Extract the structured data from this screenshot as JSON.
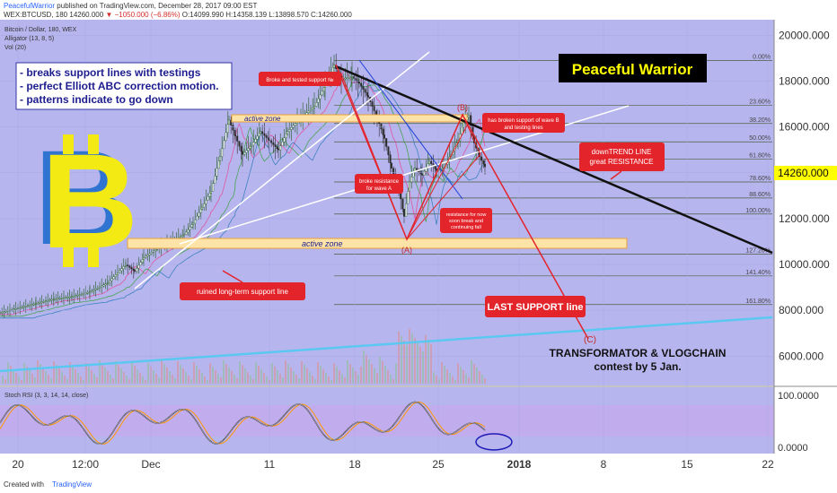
{
  "header": {
    "author": "PeacefulWarrior",
    "published": "published on TradingView.com, December 28, 2017 09:00 EST",
    "symbol": "WEX:BTCUSD, 180",
    "price": "14260.000",
    "change": "▼ −1050.000 (−6.86%)",
    "ohlc": "O:14099.990 H:14358.139 L:13898.570 C:14260.000"
  },
  "legend": {
    "title": "Bitcoin / Dollar, 180, WEX",
    "alligator": "Alligator (13, 8, 5)",
    "vol": "Vol (20)",
    "stoch": "Stoch RSI (3, 3, 14, 14, close)"
  },
  "notes": {
    "line1": "- breaks support lines with testings",
    "line2": "- perfect Elliott ABC correction motion.",
    "line3": "- patterns indicate to go down"
  },
  "banner": "Peaceful Warrior",
  "labels": {
    "active_zone_upper": "active zone",
    "active_zone_lower": "active zone",
    "broke_support": "Broke and tested support №",
    "broke_resistance_1": "broke resistance",
    "broke_resistance_2": "for wave A",
    "broken_b_1": "has broken support of wave B",
    "broken_b_2": "and testing lines",
    "resistance_now_1": "resistance for now",
    "resistance_now_2": "soon break and",
    "resistance_now_3": "continuing fall",
    "downtrend_1": "downTREND LINE",
    "downtrend_2": "great RESISTANCE",
    "ruined": "ruined long-term support line",
    "last_support": "LAST SUPPORT line",
    "wave_a": "(A)",
    "wave_b": "(B)",
    "wave_c": "(C)",
    "contest_1": "TRANSFORMATOR & VLOGCHAIN",
    "contest_2": "contest by 5 Jan.",
    "bitcoin_logo": "B"
  },
  "footer": {
    "created": "Created with",
    "tv": "TradingView"
  },
  "colors": {
    "bg": "#b7b5ee",
    "candle_up": "#1f5a1f",
    "candle_down": "#2c2c2c",
    "red_label": "#e3242b",
    "fib": "#4a5d3f",
    "trend_black": "#111111",
    "trend_white": "#ffffff",
    "support_blue": "#5bc8f2",
    "logo": "#f2ea12",
    "price_tag": "#ffff00"
  },
  "chart_data": {
    "type": "line",
    "title": "Bitcoin / Dollar, 180, WEX",
    "x_ticks": [
      "20",
      "12:00",
      "Dec",
      "11",
      "18",
      "25",
      "2018",
      "8",
      "15",
      "22"
    ],
    "y_ticks": [
      "20000.000",
      "18000.000",
      "16000.000",
      "14000.000",
      "12000.000",
      "10000.000",
      "8000.000",
      "6000.000"
    ],
    "ylim": [
      4800,
      20600
    ],
    "last_price": 14260,
    "series": [
      {
        "x": [
          0,
          20,
          40,
          60,
          80,
          100,
          120,
          140,
          150,
          160,
          175,
          190,
          205,
          215,
          225,
          235,
          245,
          255,
          262,
          270,
          280,
          290,
          300,
          310,
          320,
          335,
          350,
          362,
          372,
          380,
          392,
          400,
          410,
          420,
          428,
          436,
          444,
          450,
          456,
          462,
          470,
          478,
          486,
          494,
          502,
          510,
          516,
          522,
          528,
          534,
          540
        ],
        "values": [
          7900,
          8100,
          8300,
          8500,
          8600,
          8800,
          9200,
          10000,
          9700,
          10300,
          10700,
          11000,
          11300,
          11800,
          12500,
          13200,
          14700,
          16300,
          15600,
          14800,
          15200,
          15800,
          15400,
          15000,
          15800,
          16400,
          16900,
          17800,
          18700,
          18100,
          18200,
          17900,
          17300,
          16400,
          15500,
          14200,
          13300,
          12100,
          13600,
          14200,
          13900,
          14500,
          14100,
          14200,
          14800,
          15400,
          16200,
          16500,
          15300,
          14700,
          14260
        ]
      }
    ],
    "fib_levels": [
      {
        "label": "0.00%",
        "value": 18900
      },
      {
        "label": "23.60%",
        "value": 16950
      },
      {
        "label": "38.20%",
        "value": 16150
      },
      {
        "label": "50.00%",
        "value": 15350
      },
      {
        "label": "61.80%",
        "value": 14600
      },
      {
        "label": "78.60%",
        "value": 13600
      },
      {
        "label": "88.60%",
        "value": 12900
      },
      {
        "label": "100.00%",
        "value": 12200
      },
      {
        "label": "127.20%",
        "value": 10450
      },
      {
        "label": "141.40%",
        "value": 9500
      },
      {
        "label": "161.80%",
        "value": 8250
      }
    ],
    "stoch": {
      "y_ticks": [
        "100.0000",
        "0.0000"
      ],
      "ylim": [
        -15,
        115
      ]
    }
  }
}
